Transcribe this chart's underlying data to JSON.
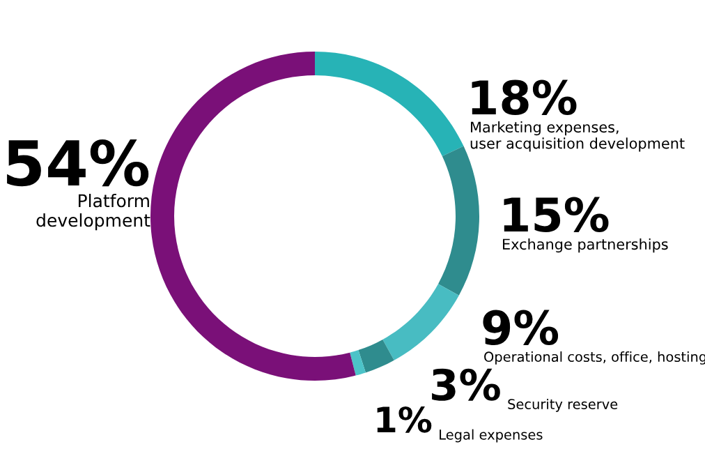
{
  "chart_data": {
    "type": "donut",
    "categories": [
      "Marketing expenses,\nuser acquisition development",
      "Exchange partnerships",
      "Operational costs, office, hosting",
      "Security reserve",
      "Legal expenses",
      "Platform\ndevelopment"
    ],
    "values": [
      18,
      15,
      9,
      3,
      1,
      54
    ],
    "colors": [
      "#27b3b6",
      "#2f8c8e",
      "#48bcc2",
      "#2f8c8e",
      "#4cc3c8",
      "#7a1078"
    ],
    "value_labels": [
      "18%",
      "15%",
      "9%",
      "3%",
      "1%",
      "54%"
    ]
  }
}
